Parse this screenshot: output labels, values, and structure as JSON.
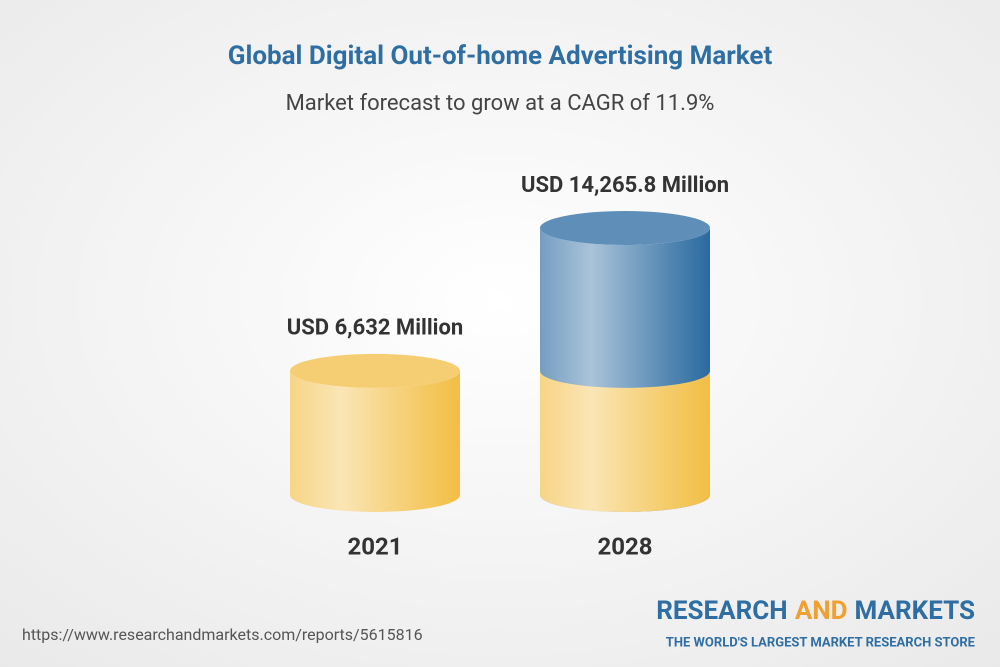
{
  "chart_data": {
    "type": "cylinder",
    "title": "Global Digital Out-of-home Advertising Market",
    "subtitle": "Market forecast to grow at a CAGR of 11.9%",
    "categories": [
      "2021",
      "2028"
    ],
    "values": [
      6632,
      14265.8
    ],
    "value_labels": [
      "USD 6,632 Million",
      "USD 14,265.8 Million"
    ],
    "colors": [
      "#f2be45",
      "#2a6aa0"
    ]
  },
  "source": "https://www.researchandmarkets.com/reports/5615816",
  "brand": {
    "name_parts": [
      "RESEARCH",
      "AND",
      "MARKETS"
    ],
    "tagline": "THE WORLD'S LARGEST MARKET RESEARCH STORE"
  }
}
